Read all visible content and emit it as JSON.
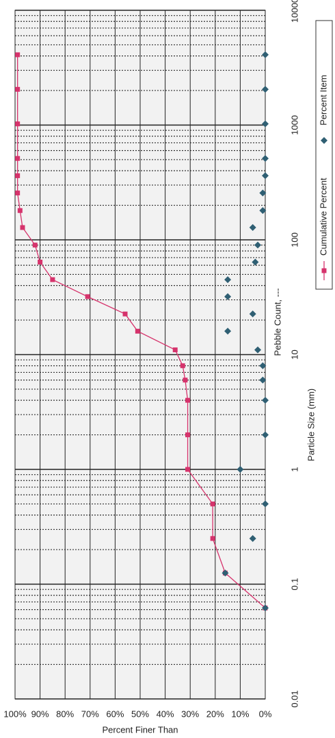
{
  "chart_data": {
    "type": "scatter",
    "title": "Pebble Count, ---",
    "x_label": "Particle Size (mm)",
    "y_label": "Percent Finer Than",
    "x_log": true,
    "grid": true,
    "minor_grid": true,
    "legend_position": "bottom",
    "xlim": [
      0.01,
      10000
    ],
    "xticks": [
      0.01,
      0.1,
      1,
      10,
      100,
      1000,
      10000
    ],
    "ylim": [
      0,
      100
    ],
    "yticks": [
      {
        "value": 0,
        "label": "0%"
      },
      {
        "value": 10,
        "label": "10%"
      },
      {
        "value": 20,
        "label": "20%"
      },
      {
        "value": 30,
        "label": "30%"
      },
      {
        "value": 40,
        "label": "40%"
      },
      {
        "value": 50,
        "label": "50%"
      },
      {
        "value": 60,
        "label": "60%"
      },
      {
        "value": 70,
        "label": "70%"
      },
      {
        "value": 80,
        "label": "80%"
      },
      {
        "value": 90,
        "label": "90%"
      },
      {
        "value": 100,
        "label": "100%"
      }
    ],
    "x": [
      0.062,
      0.125,
      0.25,
      0.5,
      1,
      2,
      4,
      6,
      8,
      11,
      16,
      22.6,
      32,
      45,
      64,
      90,
      128,
      180,
      256,
      362,
      512,
      1024,
      2048,
      4096
    ],
    "series": [
      {
        "name": "Cumulative Percent",
        "color": "#d6336c",
        "marker": "square",
        "line": true,
        "values": [
          0,
          16,
          21,
          21,
          31,
          31,
          31,
          32,
          33,
          36,
          51,
          56,
          71,
          85,
          90,
          92,
          97,
          98,
          99,
          99,
          99,
          99,
          99,
          99
        ]
      },
      {
        "name": "Percent Item",
        "color": "#2f5f73",
        "marker": "diamond",
        "line": false,
        "values": [
          0,
          16,
          5,
          0,
          10,
          0,
          0,
          1,
          1,
          3,
          15,
          5,
          15,
          15,
          4,
          3,
          5,
          1,
          1,
          0,
          0,
          0,
          0,
          0
        ]
      }
    ]
  }
}
